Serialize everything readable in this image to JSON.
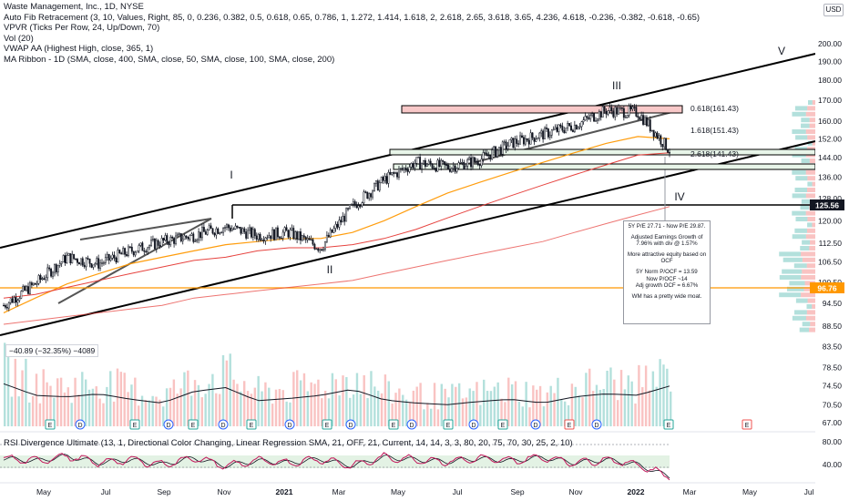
{
  "legend": {
    "title": "Waste Management, Inc., 1D, NYSE",
    "lines": [
      "Auto Fib Retracement (3, 10, Values, Right, 85, 0, 0.236, 0.382, 0.5, 0.618, 0.65, 0.786, 1, 1.272, 1.414, 1.618, 2, 2.618, 2.65, 3.618, 3.65, 4.236, 4.618, -0.236, -0.382, -0.618, -0.65)",
      "VPVR (Ticks Per Row, 24, Up/Down, 70)",
      "Vol (20)",
      "VWAP AA (Highest High, close, 365, 1)",
      "MA Ribbon - 1D (SMA, close, 400, SMA, close, 50, SMA, close, 100, SMA, close, 200)"
    ]
  },
  "currency": "USD",
  "volume_readout": "−40.89 (−32.35%) −4089",
  "rsi_legend": "RSI Divergence Ultimate (13, 1, Directional Color Changing, Linear Regression SMA, 21, OFF, 21,   Current, 14, 14, 3, 3, 80, 20, 75, 70, 30, 25, 2, 10)",
  "note": [
    "5Y P/E 27.71 - Now P/E 29.87.",
    "Adjusted Earnings Growth of 7.96% with div @ 1.57%",
    "More attractive equity based on OCF",
    "5Y Norm P/OCF = 13.59\nNow P/OCF ~14\nAdj growth OCF = 6.67%",
    "WM has a pretty wide moat."
  ],
  "colors": {
    "up": "#26a69a",
    "down": "#ef5350",
    "vwap": "#ff9800",
    "ma_red": "#e53935",
    "channel": "#000000",
    "fib_zone": "#f8c8c8",
    "price_tag_bg": "#131722",
    "orange_tag": "#ff9800"
  },
  "chart_data": [
    {
      "type": "line",
      "title": "Waste Management, Inc., 1D, NYSE",
      "x_axis_labels": [
        "May",
        "Jul",
        "Sep",
        "Nov",
        "2021",
        "Mar",
        "May",
        "Jul",
        "Sep",
        "Nov",
        "2022",
        "Mar",
        "May",
        "Jul"
      ],
      "y_axis_labels": [
        200.0,
        190.0,
        180.0,
        170.0,
        160.0,
        152.0,
        144.0,
        136.0,
        128.0,
        120.0,
        112.5,
        106.5,
        100.5,
        94.5,
        88.5,
        83.5,
        78.5,
        74.5,
        70.5,
        67.0
      ],
      "y_scale": "log",
      "price_labels": [
        {
          "value": "125.56",
          "style": "dark"
        },
        {
          "value": "96.76",
          "style": "orange"
        }
      ],
      "fib_levels": [
        {
          "label": "0.618(161.43)",
          "price": 161.43
        },
        {
          "label": "1.618(151.43)",
          "price": 151.43
        },
        {
          "label": "2.618(141.43)",
          "price": 141.43
        }
      ],
      "wave_labels": [
        "I",
        "II",
        "III",
        "IV",
        "V"
      ],
      "series": [
        {
          "name": "Price",
          "x": [
            "2020-04",
            "2020-05",
            "2020-06",
            "2020-07",
            "2020-08",
            "2020-09",
            "2020-10",
            "2020-11",
            "2020-12",
            "2021-01",
            "2021-02",
            "2021-03",
            "2021-04",
            "2021-05",
            "2021-06",
            "2021-07",
            "2021-08",
            "2021-09",
            "2021-10",
            "2021-11",
            "2021-12",
            "2022-01"
          ],
          "values": [
            94,
            100,
            108,
            106,
            110,
            113,
            115,
            118,
            115,
            116,
            111,
            125,
            135,
            142,
            140,
            143,
            150,
            154,
            158,
            165,
            164,
            147
          ]
        },
        {
          "values": [
            92,
            96,
            100,
            103,
            106,
            108,
            110,
            112,
            113,
            114,
            114,
            116,
            120,
            125,
            130,
            134,
            138,
            142,
            146,
            150,
            153,
            152
          ]
        },
        {
          "values": [
            96,
            97,
            99,
            101,
            103,
            105,
            107,
            108,
            110,
            111,
            111,
            112,
            114,
            117,
            121,
            125,
            129,
            133,
            137,
            141,
            145,
            146
          ]
        },
        {
          "values": [
            89,
            90,
            91,
            92,
            93,
            94,
            96,
            97,
            98,
            99,
            100,
            101,
            103,
            105,
            107,
            109,
            111,
            113,
            116,
            119,
            122,
            125
          ]
        }
      ]
    },
    {
      "type": "bar",
      "title": "",
      "description_series": "volume",
      "values": [
        55,
        40,
        38,
        42,
        35,
        30,
        45,
        50,
        33,
        36,
        40,
        48,
        34,
        30,
        28,
        32,
        35,
        30,
        38,
        42,
        40,
        52
      ]
    },
    {
      "type": "line",
      "title": "RSI Divergence Ultimate",
      "y_axis_labels": [
        80.0,
        40.0
      ],
      "series": [
        {
          "values": [
            62,
            58,
            66,
            55,
            60,
            52,
            63,
            50,
            58,
            55,
            61,
            50,
            64,
            60,
            57,
            62,
            58,
            64,
            55,
            60,
            52,
            32
          ]
        }
      ]
    }
  ]
}
